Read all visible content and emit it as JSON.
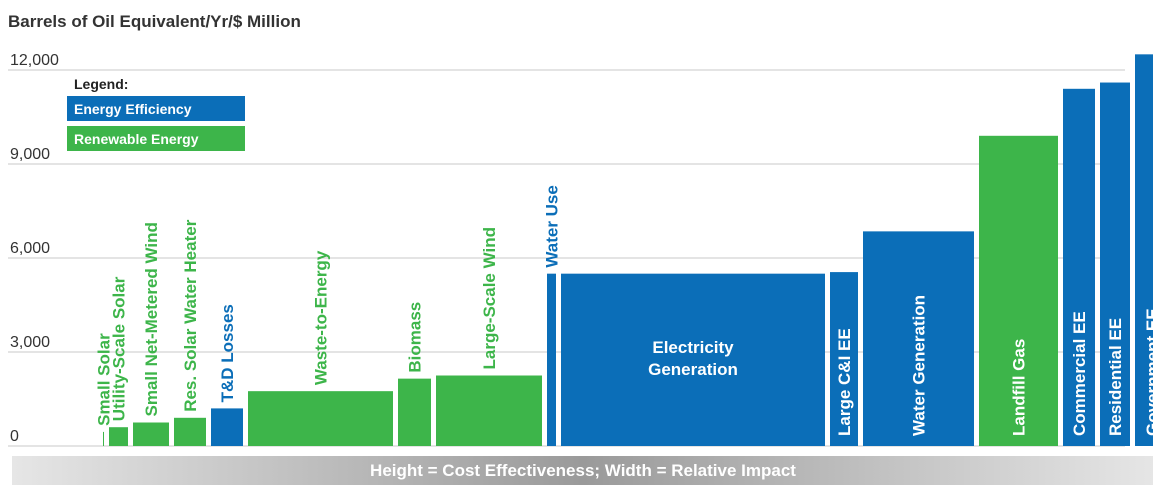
{
  "chart_data": {
    "type": "bar",
    "title": "Barrels of Oil Equivalent/Yr/$ Million",
    "xlabel": "Height = Cost Effectiveness; Width = Relative Impact",
    "ylabel": "",
    "ylim": [
      0,
      12500
    ],
    "yticks": [
      0,
      3000,
      6000,
      9000,
      12000
    ],
    "ytick_labels": [
      "0",
      "3,000",
      "6,000",
      "9,000",
      "12,000"
    ],
    "grid": true,
    "legend": {
      "title": "Legend:",
      "position": "top-left",
      "entries": [
        {
          "label": "Energy Efficiency",
          "color": "#0b6eb8"
        },
        {
          "label": "Renewable Energy",
          "color": "#3db54a"
        }
      ]
    },
    "bars": [
      {
        "label": "Small Solar",
        "value": 450,
        "relative_width": 1,
        "category": "Renewable Energy",
        "label_position": "above"
      },
      {
        "label": "Utility-Scale Solar",
        "value": 600,
        "relative_width": 19,
        "category": "Renewable Energy",
        "label_position": "above"
      },
      {
        "label": "Small Net-Metered Wind",
        "value": 750,
        "relative_width": 36,
        "category": "Renewable Energy",
        "label_position": "above"
      },
      {
        "label": "Res. Solar Water Heater",
        "value": 900,
        "relative_width": 32,
        "category": "Renewable Energy",
        "label_position": "above"
      },
      {
        "label": "T&D Losses",
        "value": 1200,
        "relative_width": 32,
        "category": "Energy Efficiency",
        "label_position": "above"
      },
      {
        "label": "Waste-to-Energy",
        "value": 1750,
        "relative_width": 145,
        "category": "Renewable Energy",
        "label_position": "above"
      },
      {
        "label": "Biomass",
        "value": 2150,
        "relative_width": 33,
        "category": "Renewable Energy",
        "label_position": "above"
      },
      {
        "label": "Large-Scale Wind",
        "value": 2250,
        "relative_width": 106,
        "category": "Renewable Energy",
        "label_position": "above"
      },
      {
        "label": "Water Use",
        "value": 5500,
        "relative_width": 9,
        "category": "Energy Efficiency",
        "label_position": "above"
      },
      {
        "label": "Electricity Generation",
        "value": 5500,
        "relative_width": 264,
        "category": "Energy Efficiency",
        "label_position": "inside-horizontal"
      },
      {
        "label": "Large C&I EE",
        "value": 5550,
        "relative_width": 28,
        "category": "Energy Efficiency",
        "label_position": "inside"
      },
      {
        "label": "Water Generation",
        "value": 6850,
        "relative_width": 111,
        "category": "Energy Efficiency",
        "label_position": "inside"
      },
      {
        "label": "Landfill Gas",
        "value": 9900,
        "relative_width": 79,
        "category": "Renewable Energy",
        "label_position": "inside"
      },
      {
        "label": "Commercial EE",
        "value": 11400,
        "relative_width": 32,
        "category": "Energy Efficiency",
        "label_position": "inside"
      },
      {
        "label": "Residential EE",
        "value": 11600,
        "relative_width": 30,
        "category": "Energy Efficiency",
        "label_position": "inside"
      },
      {
        "label": "Government EE",
        "value": 12500,
        "relative_width": 34,
        "category": "Energy Efficiency",
        "label_position": "inside"
      }
    ]
  }
}
